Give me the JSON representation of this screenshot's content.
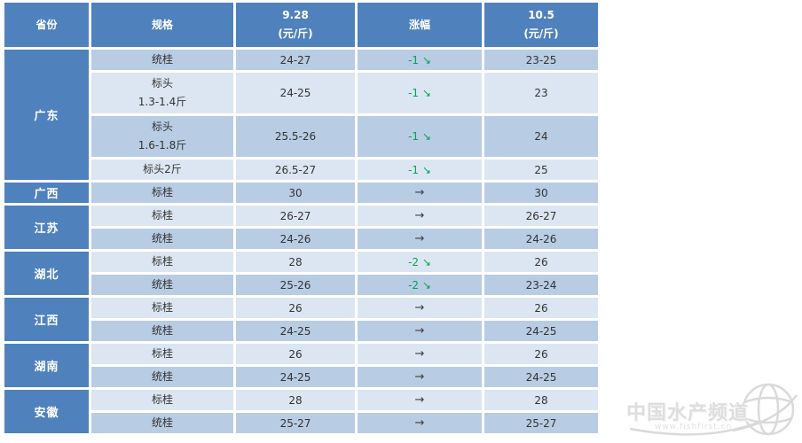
{
  "table": {
    "header": {
      "province": "省份",
      "spec": "规格",
      "date1": "9.28",
      "unit": "(元/斤)",
      "change": "涨幅",
      "date2": "10.5"
    },
    "icons": {
      "down_arrow": "↘",
      "flat_arrow": "→"
    },
    "groups": [
      {
        "province": "广东",
        "rows": [
          {
            "spec": [
              "统桂"
            ],
            "prev": "24-27",
            "change": "-1",
            "trend": "down",
            "curr": "23-25"
          },
          {
            "spec": [
              "标头",
              "1.3-1.4斤"
            ],
            "prev": "24-25",
            "change": "-1",
            "trend": "down",
            "curr": "23"
          },
          {
            "spec": [
              "标头",
              "1.6-1.8斤"
            ],
            "prev": "25.5-26",
            "change": "-1",
            "trend": "down",
            "curr": "24"
          },
          {
            "spec": [
              "标头2斤"
            ],
            "prev": "26.5-27",
            "change": "-1",
            "trend": "down",
            "curr": "25"
          }
        ]
      },
      {
        "province": "广西",
        "rows": [
          {
            "spec": [
              "标桂"
            ],
            "prev": "30",
            "change": "",
            "trend": "flat",
            "curr": "30"
          }
        ]
      },
      {
        "province": "江苏",
        "rows": [
          {
            "spec": [
              "标桂"
            ],
            "prev": "26-27",
            "change": "",
            "trend": "flat",
            "curr": "26-27"
          },
          {
            "spec": [
              "统桂"
            ],
            "prev": "24-26",
            "change": "",
            "trend": "flat",
            "curr": "24-26"
          }
        ]
      },
      {
        "province": "湖北",
        "rows": [
          {
            "spec": [
              "标桂"
            ],
            "prev": "28",
            "change": "-2",
            "trend": "down",
            "curr": "26"
          },
          {
            "spec": [
              "统桂"
            ],
            "prev": "25-26",
            "change": "-2",
            "trend": "down",
            "curr": "23-24"
          }
        ]
      },
      {
        "province": "江西",
        "rows": [
          {
            "spec": [
              "标桂"
            ],
            "prev": "26",
            "change": "",
            "trend": "flat",
            "curr": "26"
          },
          {
            "spec": [
              "统桂"
            ],
            "prev": "24-25",
            "change": "",
            "trend": "flat",
            "curr": "24-25"
          }
        ]
      },
      {
        "province": "湖南",
        "rows": [
          {
            "spec": [
              "标桂"
            ],
            "prev": "26",
            "change": "",
            "trend": "flat",
            "curr": "26"
          },
          {
            "spec": [
              "统桂"
            ],
            "prev": "24-25",
            "change": "",
            "trend": "flat",
            "curr": "24-25"
          }
        ]
      },
      {
        "province": "安徽",
        "rows": [
          {
            "spec": [
              "标桂"
            ],
            "prev": "28",
            "change": "",
            "trend": "flat",
            "curr": "28"
          },
          {
            "spec": [
              "统桂"
            ],
            "prev": "25-27",
            "change": "",
            "trend": "flat",
            "curr": "25-27"
          }
        ]
      }
    ]
  },
  "watermark": {
    "title": "中国水产频道",
    "url": "www.fishfirst.cn"
  },
  "colors": {
    "header_blue": "#4f81bd",
    "row_dark": "#b8cce4",
    "row_light": "#dce6f2",
    "trend_down_green": "#00a651",
    "cell_text": "#333333"
  },
  "chart_data": {
    "type": "table",
    "title": "桂鱼价格表 9.28 vs 10.5 (元/斤)",
    "columns": [
      "省份",
      "规格",
      "9.28 (元/斤)",
      "涨幅",
      "10.5 (元/斤)"
    ],
    "rows": [
      [
        "广东",
        "统桂",
        "24-27",
        "-1↘",
        "23-25"
      ],
      [
        "广东",
        "标头 1.3-1.4斤",
        "24-25",
        "-1↘",
        "23"
      ],
      [
        "广东",
        "标头 1.6-1.8斤",
        "25.5-26",
        "-1↘",
        "24"
      ],
      [
        "广东",
        "标头2斤",
        "26.5-27",
        "-1↘",
        "25"
      ],
      [
        "广西",
        "标桂",
        "30",
        "→",
        "30"
      ],
      [
        "江苏",
        "标桂",
        "26-27",
        "→",
        "26-27"
      ],
      [
        "江苏",
        "统桂",
        "24-26",
        "→",
        "24-26"
      ],
      [
        "湖北",
        "标桂",
        "28",
        "-2↘",
        "26"
      ],
      [
        "湖北",
        "统桂",
        "25-26",
        "-2↘",
        "23-24"
      ],
      [
        "江西",
        "标桂",
        "26",
        "→",
        "26"
      ],
      [
        "江西",
        "统桂",
        "24-25",
        "→",
        "24-25"
      ],
      [
        "湖南",
        "标桂",
        "26",
        "→",
        "26"
      ],
      [
        "湖南",
        "统桂",
        "24-25",
        "→",
        "24-25"
      ],
      [
        "安徽",
        "标桂",
        "28",
        "→",
        "28"
      ],
      [
        "安徽",
        "统桂",
        "25-27",
        "→",
        "25-27"
      ]
    ]
  }
}
